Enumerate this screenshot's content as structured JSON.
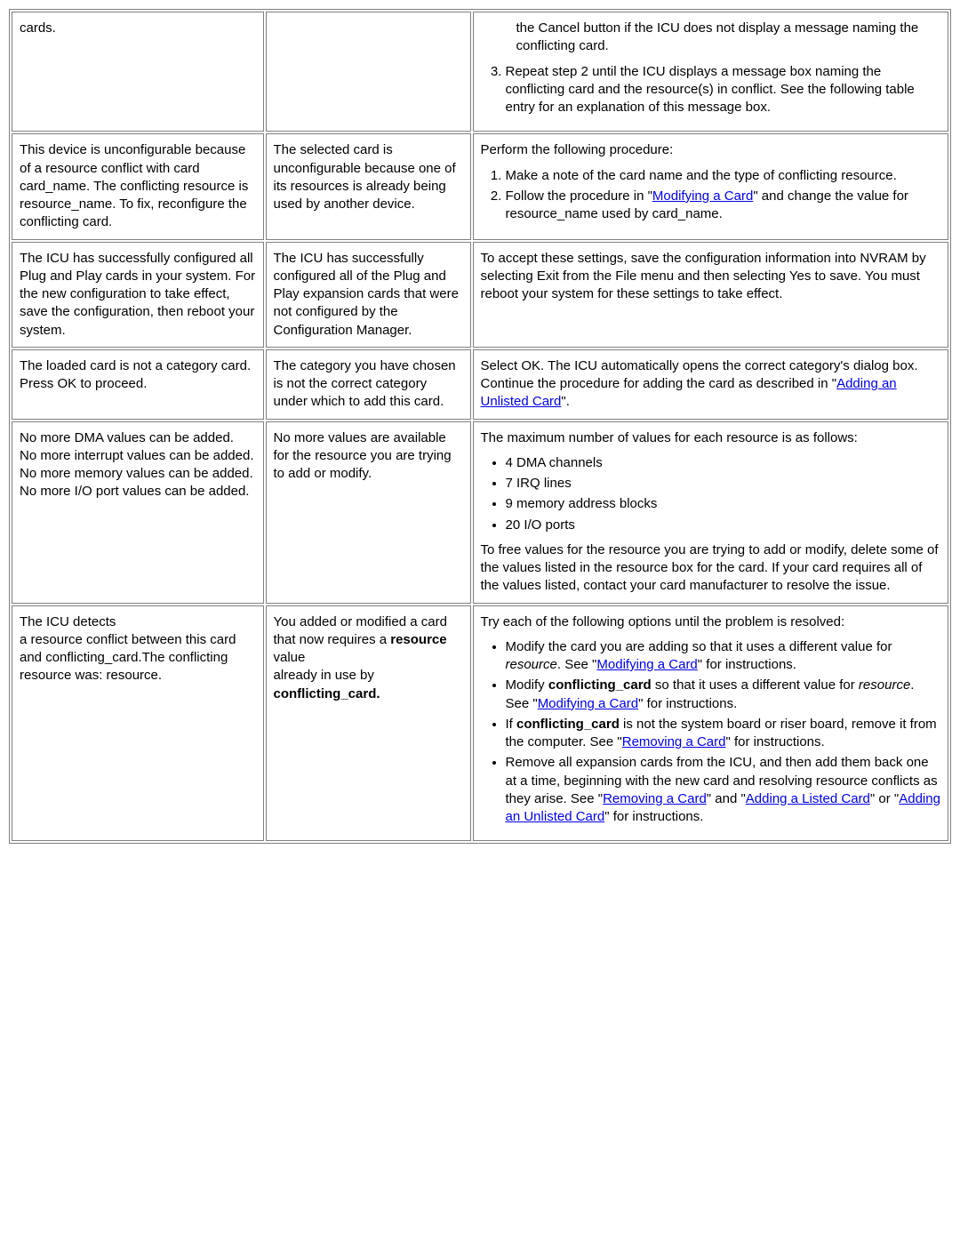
{
  "rows": [
    {
      "c1": "cards.",
      "c2": "",
      "c3_intro": "",
      "c3_is_partial_ol": true,
      "c3_ol_partial": [
        "the Cancel button if the ICU does not display a message naming the conflicting card.",
        "Repeat step 2 until the ICU displays a message box naming the conflicting card and the resource(s) in conflict. See the following table entry for an explanation of this message box."
      ],
      "c3_ol_start": 2
    },
    {
      "c1": "This device is unconfigurable because of a resource conflict with card card_name. The conflicting resource is resource_name. To fix, reconfigure the conflicting card.",
      "c2": "The selected card is unconfigurable because one of its resources is already being used by another device.",
      "c3_intro": "Perform the following procedure:",
      "c3_ol": [
        {
          "text": "Make a note of the card name and the type of conflicting resource."
        },
        {
          "pre": "Follow the procedure in \"",
          "link": "Modifying a Card",
          "post": "\" and change the value for resource_name used by card_name."
        }
      ]
    },
    {
      "c1": "The ICU has successfully configured all Plug and Play cards in your system. For the new configuration to take effect, save the configuration, then reboot your system.",
      "c2": "The ICU has successfully configured all of the Plug and Play expansion cards that were not configured by the Configuration Manager.",
      "c3_plain": "To accept these settings, save the configuration information into NVRAM by selecting Exit from the File menu and then selecting Yes to save. You must reboot your system for these settings to take effect."
    },
    {
      "c1": "The loaded card is not a category card. Press OK to proceed.",
      "c2": "The category you have chosen is not the correct category under which to add this card.",
      "c3_pre": "Select OK. The ICU automatically opens the correct category's dialog box. Continue the procedure for adding the card as described in \"",
      "c3_link": "Adding an Unlisted Card",
      "c3_post": "\"."
    },
    {
      "c1_lines": [
        "No more DMA values can be added.",
        "No more interrupt values can be added.",
        "No more memory values can be added.",
        "No more I/O port values can be added."
      ],
      "c2": "No more values are available for the resource you are trying to add or modify.",
      "c3_intro": "The maximum number of values for each resource is as follows:",
      "c3_ul_plain": [
        "4 DMA channels",
        "7 IRQ lines",
        "9 memory address blocks",
        "20 I/O ports"
      ],
      "c3_tail": "To free values for the resource you are trying to add or modify, delete some of the values listed in the resource box for the card. If your card requires all of the values listed, contact your card manufacturer to resolve the issue."
    },
    {
      "c1_lines": [
        "The ICU detects",
        "a resource conflict between this card and conflicting_card.The conflicting resource was: resource."
      ],
      "c2_parts": [
        {
          "t": "You added or modified a card that now requires a "
        },
        {
          "t": "resource",
          "b": true
        },
        {
          "t": " value",
          "br": true
        },
        {
          "t": "already in use by ",
          "br": false
        },
        {
          "t": "conflicting_card.",
          "b": true,
          "br_before": true
        }
      ],
      "c3_intro": "Try each of the following options until the problem is resolved:",
      "c3_ul_rich": [
        {
          "parts": [
            {
              "t": "Modify the card you are adding so that it uses a different value for "
            },
            {
              "t": "resource",
              "i": true
            },
            {
              "t": ". See \""
            },
            {
              "link": "Modifying a Card"
            },
            {
              "t": "\" for instructions."
            }
          ]
        },
        {
          "parts": [
            {
              "t": "Modify "
            },
            {
              "t": "conflicting_card",
              "b": true
            },
            {
              "t": " so that it uses a different value for "
            },
            {
              "t": "resource",
              "i": true
            },
            {
              "t": ". See \""
            },
            {
              "link": "Modifying a Card"
            },
            {
              "t": "\" for instructions."
            }
          ]
        },
        {
          "parts": [
            {
              "t": "If "
            },
            {
              "t": "conflicting_card",
              "b": true
            },
            {
              "t": " is not the system board or riser board, remove it from the computer. See \""
            },
            {
              "link": "Removing a Card"
            },
            {
              "t": "\" for instructions."
            }
          ]
        },
        {
          "parts": [
            {
              "t": "Remove all expansion cards from the ICU, and then add them back one at a time, beginning with the new card and resolving resource conflicts as they arise. See \""
            },
            {
              "link": "Removing a Card"
            },
            {
              "t": "\" and \""
            },
            {
              "link": "Adding a Listed Card"
            },
            {
              "t": "\" or \""
            },
            {
              "link": "Adding an Unlisted Card"
            },
            {
              "t": "\" for instructions."
            }
          ]
        }
      ]
    }
  ]
}
